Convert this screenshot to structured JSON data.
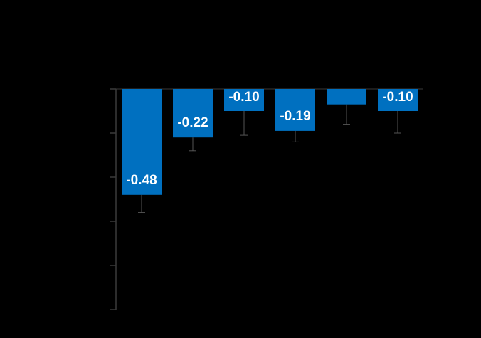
{
  "chart_data": {
    "type": "bar",
    "categories": [
      null,
      null,
      null,
      null,
      null,
      null
    ],
    "values": [
      -0.48,
      -0.22,
      -0.1,
      -0.19,
      -0.07,
      -0.1
    ],
    "value_labels": [
      "-0.48",
      "-0.22",
      "-0.10",
      "-0.19",
      null,
      "-0.10"
    ],
    "errors": [
      0.08,
      0.06,
      0.11,
      0.05,
      0.09,
      0.1
    ],
    "color": "#0070c0",
    "ylim": [
      -1.0,
      0
    ],
    "yticks": [
      0,
      -0.2,
      -0.4,
      -0.6,
      -0.8,
      -1.0
    ]
  }
}
